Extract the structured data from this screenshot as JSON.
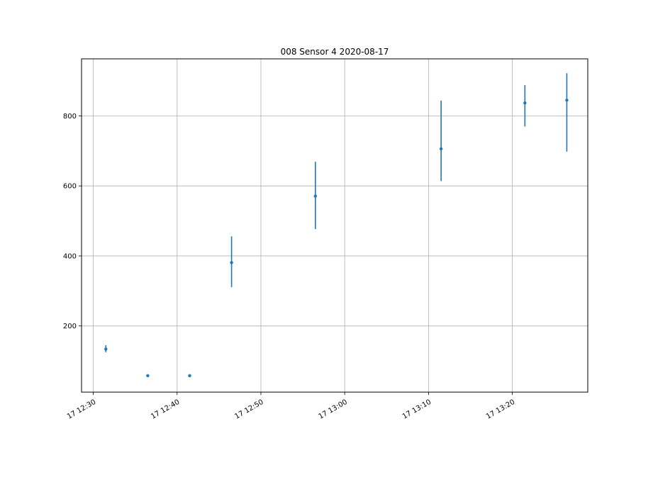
{
  "chart_data": {
    "type": "scatter",
    "title": "008 Sensor 4 2020-08-17",
    "xlabel": "",
    "ylabel": "",
    "x_axis": {
      "type": "time",
      "lim": [
        "2020-08-17 12:28:36",
        "2020-08-17 13:29:00"
      ],
      "ticks": [
        "2020-08-17 12:30",
        "2020-08-17 12:40",
        "2020-08-17 12:50",
        "2020-08-17 13:00",
        "2020-08-17 13:10",
        "2020-08-17 13:20"
      ],
      "tick_labels": [
        "17 12:30",
        "17 12:40",
        "17 12:50",
        "17 13:00",
        "17 13:10",
        "17 13:20"
      ]
    },
    "y_axis": {
      "lim": [
        11,
        963
      ],
      "ticks": [
        200,
        400,
        600,
        800
      ],
      "tick_labels": [
        "200",
        "400",
        "600",
        "800"
      ]
    },
    "grid": true,
    "series": [
      {
        "color": "#1f77b4",
        "points": [
          {
            "x": "2020-08-17 12:31:30",
            "y": 134,
            "ymin": 125,
            "ymax": 145
          },
          {
            "x": "2020-08-17 12:36:30",
            "y": 58,
            "ymin": 58,
            "ymax": 58
          },
          {
            "x": "2020-08-17 12:41:30",
            "y": 58,
            "ymin": 58,
            "ymax": 58
          },
          {
            "x": "2020-08-17 12:46:30",
            "y": 381,
            "ymin": 311,
            "ymax": 456
          },
          {
            "x": "2020-08-17 12:56:30",
            "y": 571,
            "ymin": 477,
            "ymax": 669
          },
          {
            "x": "2020-08-17 13:11:30",
            "y": 706,
            "ymin": 614,
            "ymax": 844
          },
          {
            "x": "2020-08-17 13:21:30",
            "y": 837,
            "ymin": 770,
            "ymax": 888
          },
          {
            "x": "2020-08-17 13:26:30",
            "y": 845,
            "ymin": 698,
            "ymax": 922
          }
        ]
      }
    ]
  }
}
